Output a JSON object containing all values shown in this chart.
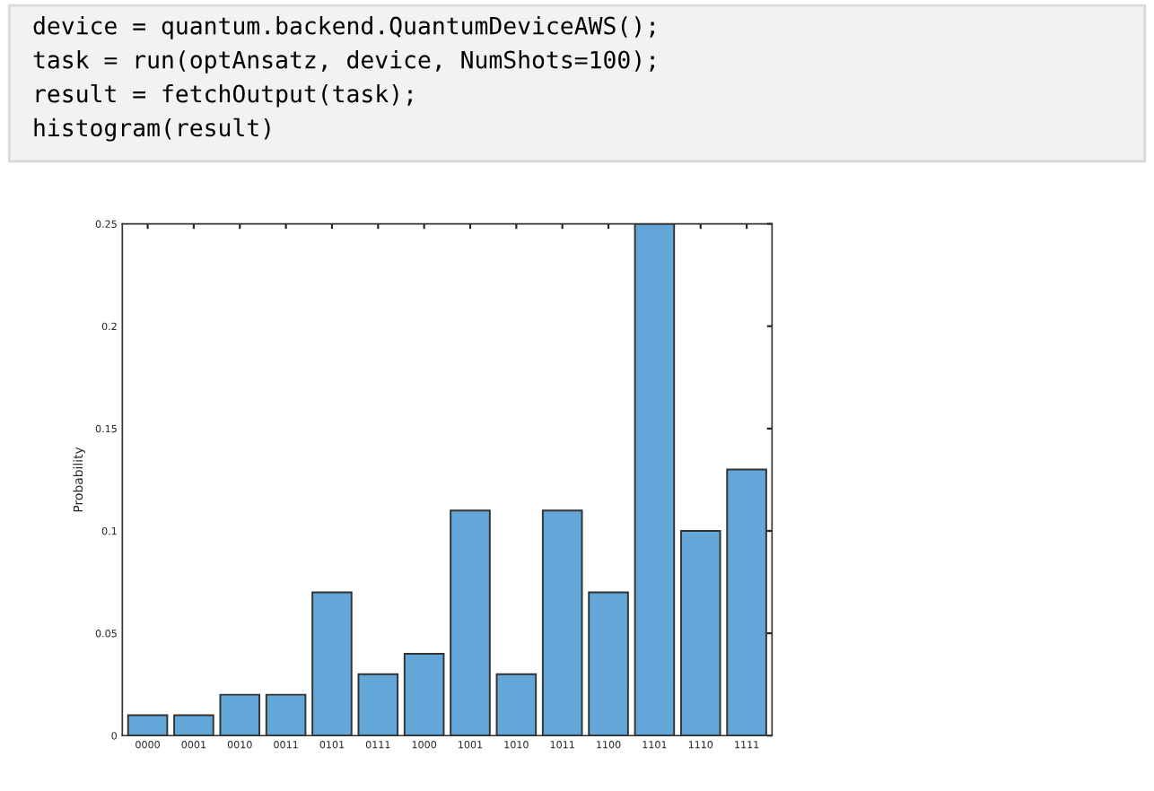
{
  "chart_data": {
    "type": "bar",
    "annotations": [
      "device = quantum.backend.QuantumDeviceAWS();",
      "task = run(optAnsatz, device, NumShots=100);",
      "result = fetchOutput(task);",
      "histogram(result)"
    ],
    "ylabel": "Probability",
    "categories": [
      "0000",
      "0001",
      "0010",
      "0011",
      "0101",
      "0111",
      "1000",
      "1001",
      "1010",
      "1011",
      "1100",
      "1101",
      "1110",
      "1111"
    ],
    "values": [
      0.01,
      0.01,
      0.02,
      0.02,
      0.07,
      0.03,
      0.04,
      0.11,
      0.03,
      0.11,
      0.07,
      0.25,
      0.1,
      0.13
    ],
    "color": "#62a7d8",
    "ylim": [
      0,
      0.25
    ],
    "yticks": [
      0,
      0.05,
      0.1,
      0.15,
      0.2,
      0.25
    ],
    "grid": false
  }
}
